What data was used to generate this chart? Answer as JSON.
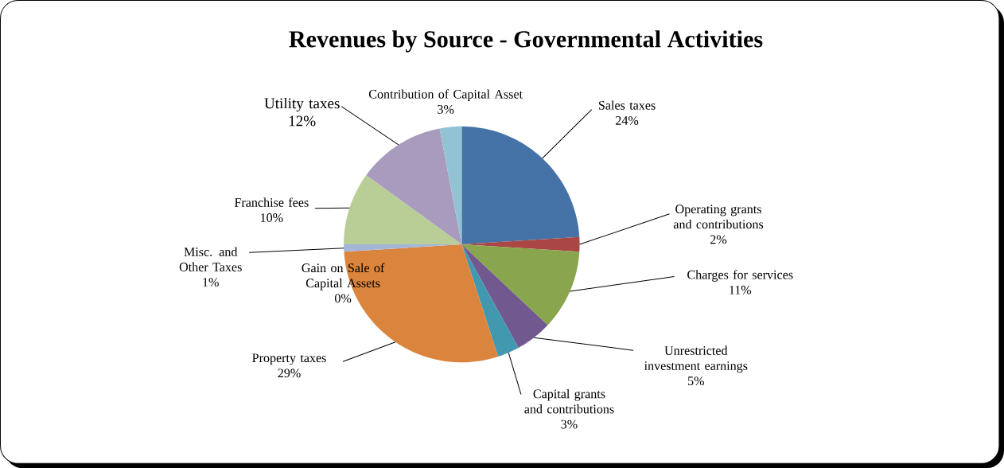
{
  "chart_data": {
    "type": "pie",
    "title": "Revenues by Source - Governmental Activities",
    "categories": [
      "Sales taxes",
      "Operating grants and contributions",
      "Charges for services",
      "Unrestricted investment earnings",
      "Capital grants and contributions",
      "Property taxes",
      "Gain on Sale of Capital Assets",
      "Misc. and Other Taxes",
      "Franchise fees",
      "Utility taxes",
      "Contribution of Capital Asset"
    ],
    "values": [
      24,
      2,
      11,
      5,
      3,
      29,
      0,
      1,
      10,
      12,
      3
    ],
    "value_labels": [
      "24%",
      "2%",
      "11%",
      "5%",
      "3%",
      "29%",
      "0%",
      "1%",
      "10%",
      "12%",
      "3%"
    ],
    "colors": [
      "#4572a7",
      "#aa4643",
      "#89a54e",
      "#71588f",
      "#4198af",
      "#db843d",
      "#93a9cf",
      "#a4b6d8",
      "#b9cd96",
      "#a99bbd",
      "#92c3d4"
    ]
  }
}
